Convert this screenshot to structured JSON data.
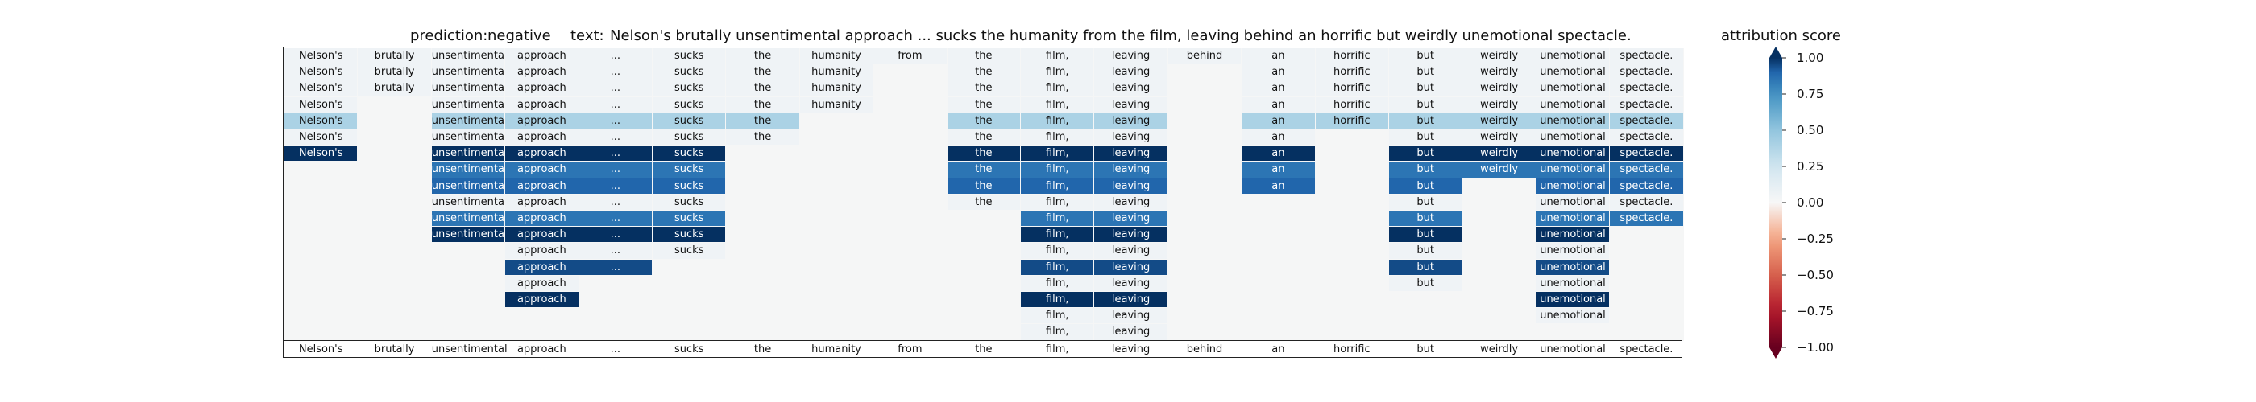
{
  "header": {
    "prediction_label": "prediction:",
    "prediction_value": "negative",
    "text_label": "text:",
    "text_value": "Nelson's brutally unsentimental approach ... sucks the humanity from the film, leaving behind an horrific but weirdly unemotional spectacle.",
    "colorbar_title": "attribution score"
  },
  "chart_data": {
    "type": "heatmap",
    "tokens": [
      "Nelson's",
      "brutally",
      "unsentimental",
      "approach",
      "...",
      "sucks",
      "the",
      "humanity",
      "from",
      "the",
      "film,",
      "leaving",
      "behind",
      "an",
      "horrific",
      "but",
      "weirdly",
      "unemotional",
      "spectacle."
    ],
    "value_range": [
      -1.0,
      1.0
    ],
    "colormap": "RdBu",
    "colorbar_ticks": [
      "1.00",
      "0.75",
      "0.50",
      "0.25",
      "0.00",
      "−0.25",
      "−0.50",
      "−0.75",
      "−1.00"
    ],
    "colorbar_tick_values": [
      1.0,
      0.75,
      0.5,
      0.25,
      0.0,
      -0.25,
      -0.5,
      -0.75,
      -1.0
    ],
    "rows": [
      [
        0.05,
        0.05,
        0.05,
        0.05,
        0.05,
        0.05,
        0.05,
        0.05,
        0.05,
        0.05,
        0.05,
        0.05,
        0.05,
        0.05,
        0.05,
        0.05,
        0.05,
        0.05,
        0.05
      ],
      [
        0.05,
        0.05,
        0.05,
        0.05,
        0.05,
        0.05,
        0.05,
        0.05,
        null,
        0.05,
        0.05,
        0.05,
        null,
        0.05,
        0.05,
        0.05,
        0.05,
        0.05,
        0.05
      ],
      [
        0.05,
        0.05,
        0.05,
        0.05,
        0.05,
        0.05,
        0.05,
        0.05,
        null,
        0.05,
        0.05,
        0.05,
        null,
        0.05,
        0.05,
        0.05,
        0.05,
        0.05,
        0.05
      ],
      [
        0.05,
        null,
        0.05,
        0.05,
        0.05,
        0.05,
        0.05,
        0.05,
        null,
        0.05,
        0.05,
        0.05,
        null,
        0.05,
        0.05,
        0.05,
        0.05,
        0.05,
        0.05
      ],
      [
        0.4,
        null,
        0.4,
        0.4,
        0.4,
        0.4,
        0.4,
        null,
        null,
        0.4,
        0.4,
        0.4,
        null,
        0.4,
        0.4,
        0.4,
        0.4,
        0.4,
        0.4
      ],
      [
        0.05,
        null,
        0.05,
        0.05,
        0.05,
        0.05,
        0.05,
        null,
        null,
        0.05,
        0.05,
        0.05,
        null,
        0.05,
        null,
        0.05,
        0.05,
        0.05,
        0.05
      ],
      [
        1.0,
        null,
        1.0,
        1.0,
        1.0,
        1.0,
        null,
        null,
        null,
        1.0,
        1.0,
        1.0,
        null,
        1.0,
        null,
        1.0,
        1.0,
        1.0,
        1.0
      ],
      [
        null,
        null,
        0.85,
        0.85,
        0.85,
        0.85,
        null,
        null,
        null,
        0.85,
        0.85,
        0.85,
        null,
        0.85,
        null,
        0.85,
        0.85,
        0.85,
        0.85
      ],
      [
        null,
        null,
        0.9,
        0.9,
        0.9,
        0.9,
        null,
        null,
        null,
        0.9,
        0.9,
        0.9,
        null,
        0.9,
        null,
        0.9,
        null,
        0.9,
        0.9
      ],
      [
        null,
        null,
        0.05,
        0.05,
        0.05,
        0.05,
        null,
        null,
        null,
        0.05,
        0.05,
        0.05,
        null,
        null,
        null,
        0.05,
        null,
        0.05,
        0.05
      ],
      [
        null,
        null,
        0.85,
        0.85,
        0.85,
        0.85,
        null,
        null,
        null,
        null,
        0.85,
        0.85,
        null,
        null,
        null,
        0.85,
        null,
        0.85,
        0.85
      ],
      [
        null,
        null,
        1.0,
        1.0,
        1.0,
        1.0,
        null,
        null,
        null,
        null,
        1.0,
        1.0,
        null,
        null,
        null,
        1.0,
        null,
        1.0,
        null
      ],
      [
        null,
        null,
        null,
        0.05,
        0.05,
        0.05,
        null,
        null,
        null,
        null,
        0.05,
        0.05,
        null,
        null,
        null,
        0.05,
        null,
        0.05,
        null
      ],
      [
        null,
        null,
        null,
        0.95,
        0.95,
        null,
        null,
        null,
        null,
        null,
        0.95,
        0.95,
        null,
        null,
        null,
        0.95,
        null,
        0.95,
        null
      ],
      [
        null,
        null,
        null,
        0.05,
        null,
        null,
        null,
        null,
        null,
        null,
        0.05,
        0.05,
        null,
        null,
        null,
        0.05,
        null,
        0.05,
        null
      ],
      [
        null,
        null,
        null,
        1.0,
        null,
        null,
        null,
        null,
        null,
        null,
        1.0,
        1.0,
        null,
        null,
        null,
        null,
        null,
        1.0,
        null
      ],
      [
        null,
        null,
        null,
        null,
        null,
        null,
        null,
        null,
        null,
        null,
        0.05,
        0.05,
        null,
        null,
        null,
        null,
        null,
        0.05,
        null
      ],
      [
        null,
        null,
        null,
        null,
        null,
        null,
        null,
        null,
        null,
        null,
        0.05,
        0.05,
        null,
        null,
        null,
        null,
        null,
        null,
        null
      ]
    ],
    "reference_row": [
      "Nelson's",
      "brutally",
      "unsentimental",
      "approach",
      "...",
      "sucks",
      "the",
      "humanity",
      "from",
      "the",
      "film,",
      "leaving",
      "behind",
      "an",
      "horrific",
      "but",
      "weirdly",
      "unemotional",
      "spectacle."
    ]
  }
}
